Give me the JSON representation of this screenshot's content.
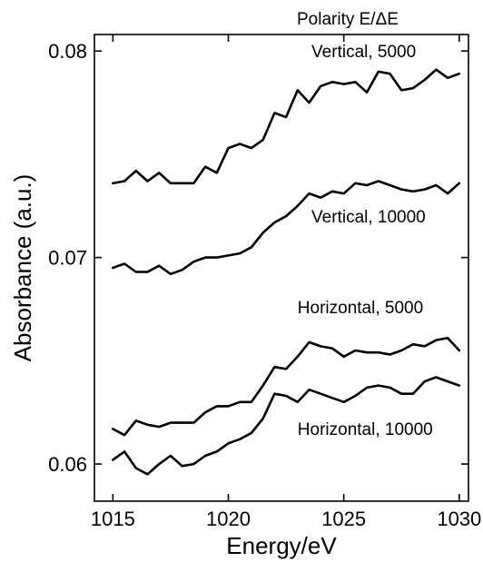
{
  "chart_data": {
    "type": "line",
    "xlabel": "Energy/eV",
    "ylabel": "Absorbance (a.u.)",
    "corner_label": "Polarity  E/ΔE",
    "xlim": [
      1014.2,
      1030.4
    ],
    "ylim": [
      0.0582,
      0.0808
    ],
    "xticks": [
      {
        "value": 1015,
        "label": "1015"
      },
      {
        "value": 1020,
        "label": "1020"
      },
      {
        "value": 1025,
        "label": "1025"
      },
      {
        "value": 1030,
        "label": "1030"
      }
    ],
    "yticks": [
      {
        "value": 0.06,
        "label": "0.06"
      },
      {
        "value": 0.07,
        "label": "0.07"
      },
      {
        "value": 0.08,
        "label": "0.08"
      }
    ],
    "x": [
      1015,
      1015.5,
      1016,
      1016.5,
      1017,
      1017.5,
      1018,
      1018.5,
      1019,
      1019.5,
      1020,
      1020.5,
      1021,
      1021.5,
      1022,
      1022.5,
      1023,
      1023.5,
      1024,
      1024.5,
      1025,
      1025.5,
      1026,
      1026.5,
      1027,
      1027.5,
      1028,
      1028.5,
      1029,
      1029.5,
      1030
    ],
    "series": [
      {
        "label": "Vertical, 5000",
        "label_anchor": {
          "x": 1023.6,
          "y": 0.0797
        },
        "values": [
          0.0736,
          0.0737,
          0.0742,
          0.0737,
          0.0741,
          0.0736,
          0.0736,
          0.0736,
          0.0744,
          0.0741,
          0.0753,
          0.0755,
          0.0753,
          0.0757,
          0.077,
          0.0768,
          0.0781,
          0.0775,
          0.0783,
          0.0785,
          0.0784,
          0.0785,
          0.078,
          0.079,
          0.0789,
          0.0781,
          0.0782,
          0.0786,
          0.0791,
          0.0787,
          0.0789
        ]
      },
      {
        "label": "Vertical, 10000",
        "label_anchor": {
          "x": 1023.6,
          "y": 0.0717
        },
        "values": [
          0.0695,
          0.0697,
          0.0693,
          0.0693,
          0.0696,
          0.0692,
          0.0694,
          0.0698,
          0.07,
          0.07,
          0.0701,
          0.0702,
          0.0705,
          0.0712,
          0.0717,
          0.072,
          0.0725,
          0.0731,
          0.0729,
          0.0732,
          0.0731,
          0.0736,
          0.0735,
          0.0737,
          0.0735,
          0.0733,
          0.0732,
          0.0733,
          0.0735,
          0.0731,
          0.0736
        ]
      },
      {
        "label": "Horizontal, 5000",
        "label_anchor": {
          "x": 1023.0,
          "y": 0.0673
        },
        "values": [
          0.0617,
          0.0614,
          0.0621,
          0.0619,
          0.0618,
          0.062,
          0.062,
          0.062,
          0.0625,
          0.0628,
          0.0628,
          0.063,
          0.063,
          0.0638,
          0.0647,
          0.0646,
          0.0652,
          0.0659,
          0.0657,
          0.0656,
          0.0652,
          0.0655,
          0.0654,
          0.0654,
          0.0653,
          0.0655,
          0.0658,
          0.0657,
          0.066,
          0.0661,
          0.0655
        ]
      },
      {
        "label": "Horizontal, 10000",
        "label_anchor": {
          "x": 1023.0,
          "y": 0.0614
        },
        "values": [
          0.0602,
          0.0606,
          0.0598,
          0.0595,
          0.06,
          0.0604,
          0.0599,
          0.06,
          0.0604,
          0.0606,
          0.061,
          0.0612,
          0.0615,
          0.0622,
          0.0634,
          0.0633,
          0.063,
          0.0636,
          0.0634,
          0.0632,
          0.063,
          0.0633,
          0.0637,
          0.0638,
          0.0637,
          0.0634,
          0.0634,
          0.064,
          0.0642,
          0.064,
          0.0638
        ]
      }
    ],
    "grid": false,
    "legend": "none"
  }
}
